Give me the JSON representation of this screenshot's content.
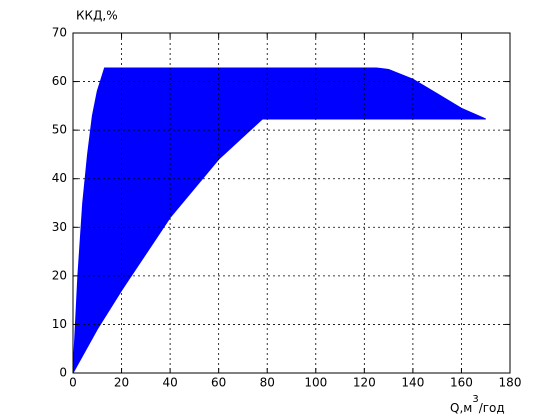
{
  "chart_data": {
    "type": "area",
    "ylabel": "ККД,%",
    "xlabel": [
      "Q,м",
      "3",
      "/год"
    ],
    "series": [
      {
        "color": "#0000ff",
        "x": [
          0,
          2,
          4,
          6,
          8,
          10,
          13,
          40,
          80,
          125,
          130,
          140,
          150,
          160,
          170,
          120,
          78,
          60,
          40,
          20,
          10,
          0
        ],
        "values": [
          0,
          20,
          35,
          45,
          53,
          58,
          62.8,
          62.8,
          62.8,
          62.8,
          62.5,
          60.5,
          57.5,
          54.5,
          52.3,
          52.3,
          52.3,
          44,
          32,
          17,
          9,
          0
        ]
      }
    ],
    "xlim": [
      0,
      180
    ],
    "xticks": [
      0,
      20,
      40,
      60,
      80,
      100,
      120,
      140,
      160,
      180
    ],
    "ylim": [
      0,
      70
    ],
    "yticks": [
      0,
      10,
      20,
      30,
      40,
      50,
      60,
      70
    ],
    "grid": true
  }
}
